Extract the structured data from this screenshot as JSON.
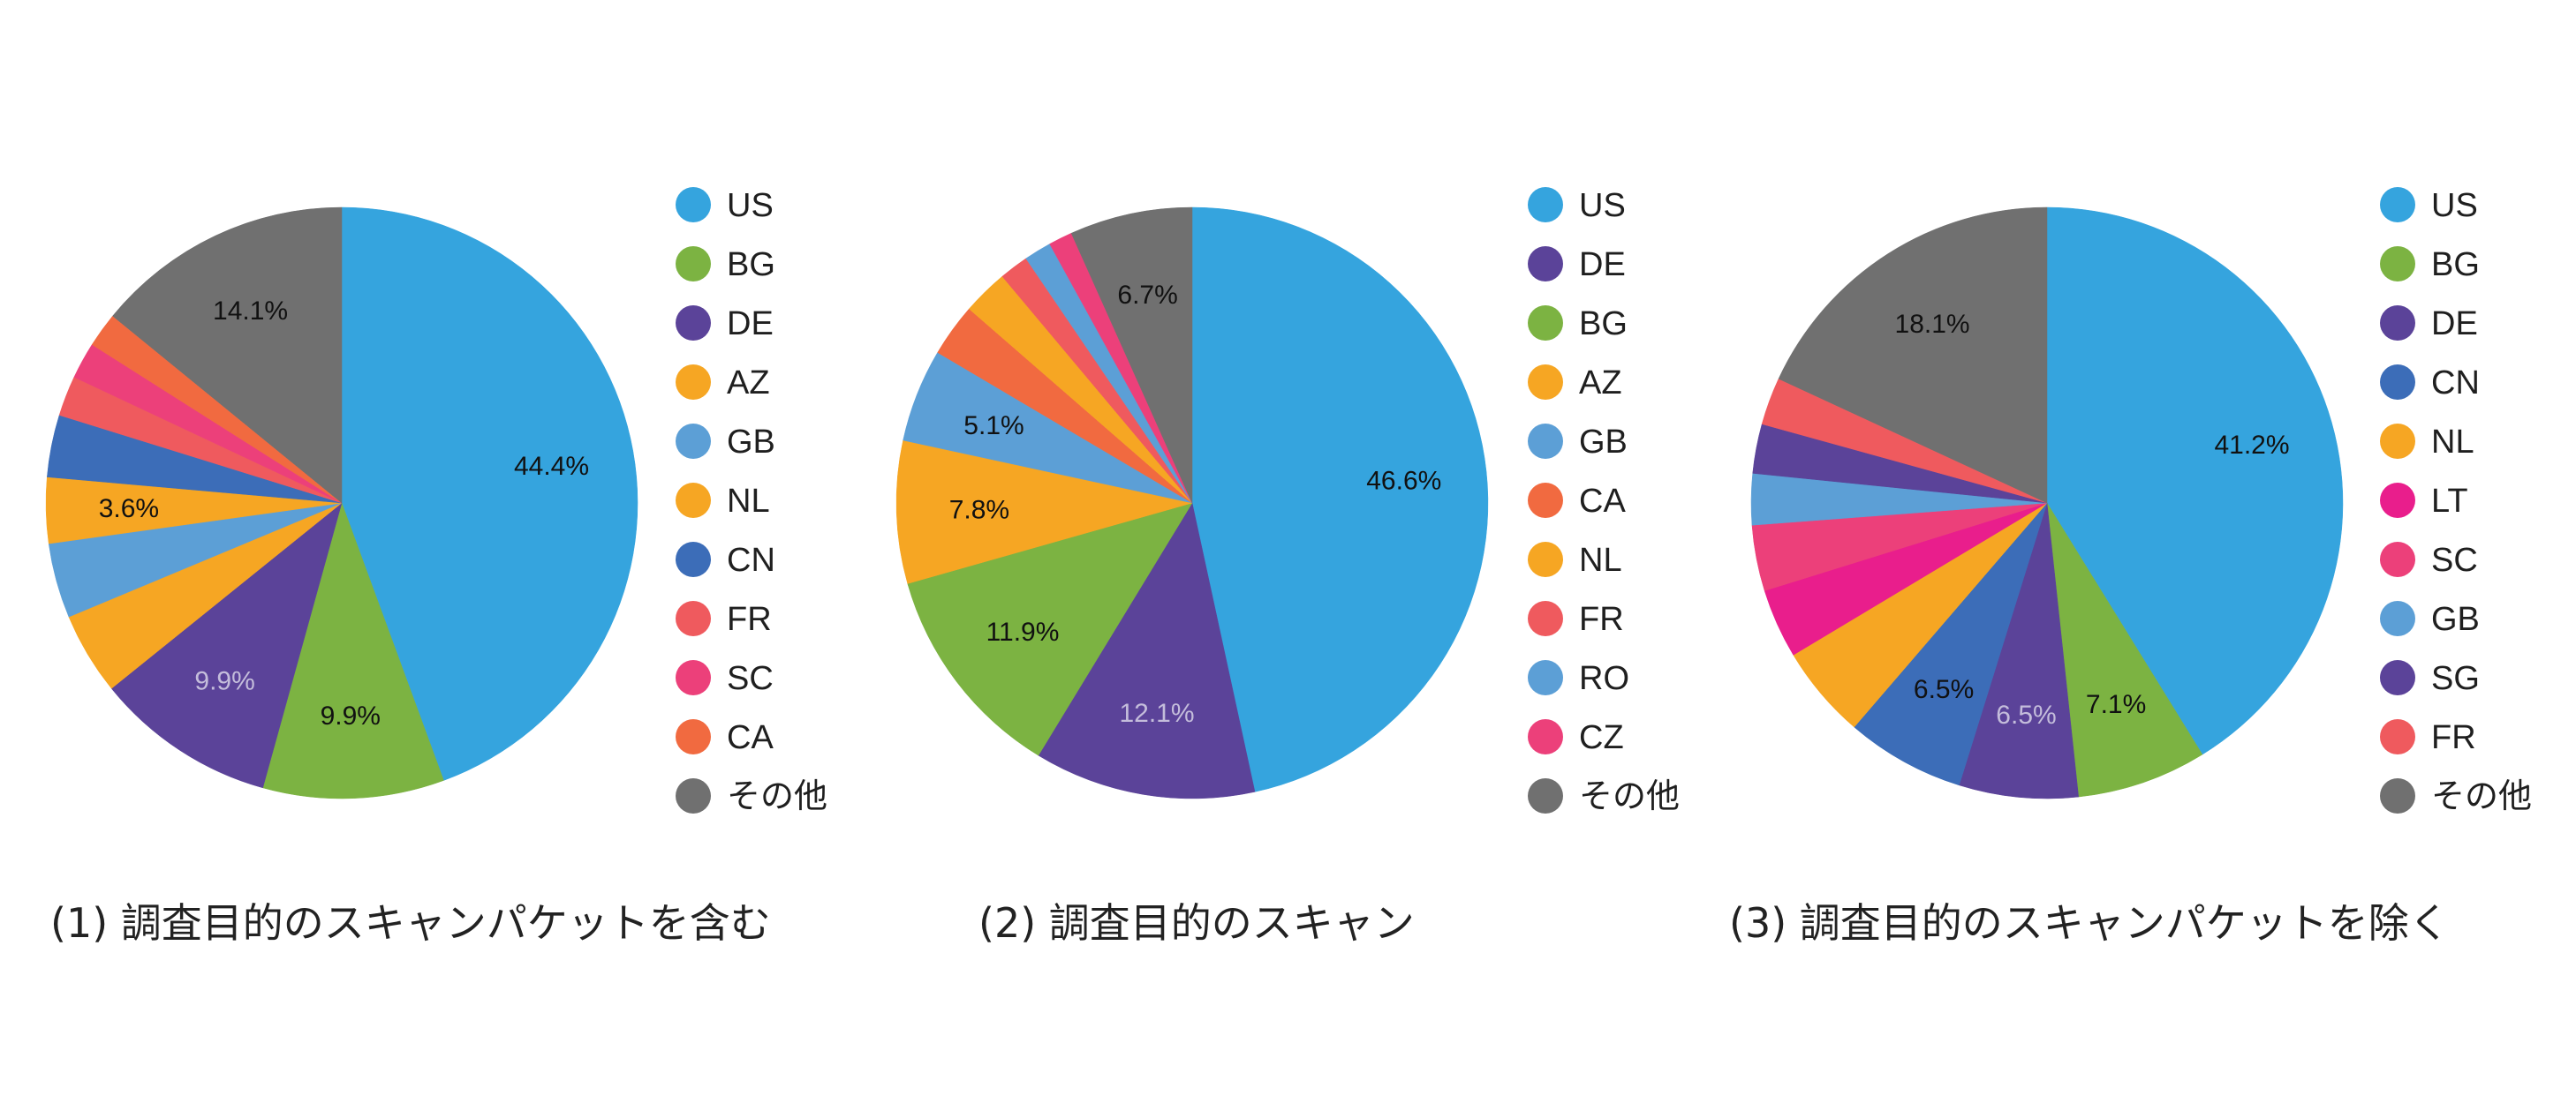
{
  "chart_data": [
    {
      "type": "pie",
      "caption": "(1) 調査目的のスキャンパケットを含む",
      "slices": [
        {
          "label": "US",
          "value": 44.4,
          "color": "#35a4de",
          "text": "44.4%",
          "text_color": "#111111"
        },
        {
          "label": "BG",
          "value": 9.9,
          "color": "#7cb342",
          "text": "9.9%",
          "text_color": "#111111"
        },
        {
          "label": "DE",
          "value": 9.9,
          "color": "#5b4399",
          "text": "9.9%",
          "text_color": "#c4bddb"
        },
        {
          "label": "AZ",
          "value": 4.5,
          "color": "#f6a623",
          "text": "",
          "text_color": "#111111"
        },
        {
          "label": "GB",
          "value": 4.1,
          "color": "#5c9fd6",
          "text": "",
          "text_color": "#111111"
        },
        {
          "label": "NL",
          "value": 3.6,
          "color": "#f6a623",
          "text": "3.6%",
          "text_color": "#111111"
        },
        {
          "label": "CN",
          "value": 3.4,
          "color": "#3c6db8",
          "text": "",
          "text_color": "#111111"
        },
        {
          "label": "FR",
          "value": 2.2,
          "color": "#ef5a5e",
          "text": "",
          "text_color": "#111111"
        },
        {
          "label": "SC",
          "value": 2.0,
          "color": "#ec407a",
          "text": "",
          "text_color": "#111111"
        },
        {
          "label": "CA",
          "value": 1.9,
          "color": "#f16a40",
          "text": "",
          "text_color": "#111111"
        },
        {
          "label": "その他",
          "value": 14.1,
          "color": "#707070",
          "text": "14.1%",
          "text_color": "#111111"
        }
      ]
    },
    {
      "type": "pie",
      "caption": "(2) 調査目的のスキャン",
      "slices": [
        {
          "label": "US",
          "value": 46.6,
          "color": "#35a4de",
          "text": "46.6%",
          "text_color": "#111111"
        },
        {
          "label": "DE",
          "value": 12.1,
          "color": "#5b4399",
          "text": "12.1%",
          "text_color": "#c4bddb"
        },
        {
          "label": "BG",
          "value": 11.9,
          "color": "#7cb342",
          "text": "11.9%",
          "text_color": "#111111"
        },
        {
          "label": "AZ",
          "value": 7.8,
          "color": "#f6a623",
          "text": "7.8%",
          "text_color": "#111111"
        },
        {
          "label": "GB",
          "value": 5.1,
          "color": "#5c9fd6",
          "text": "5.1%",
          "text_color": "#111111"
        },
        {
          "label": "CA",
          "value": 2.9,
          "color": "#f16a40",
          "text": "",
          "text_color": "#111111"
        },
        {
          "label": "NL",
          "value": 2.5,
          "color": "#f6a623",
          "text": "",
          "text_color": "#111111"
        },
        {
          "label": "FR",
          "value": 1.6,
          "color": "#ef5a5e",
          "text": "",
          "text_color": "#111111"
        },
        {
          "label": "RO",
          "value": 1.5,
          "color": "#5c9fd6",
          "text": "",
          "text_color": "#111111"
        },
        {
          "label": "CZ",
          "value": 1.3,
          "color": "#ec407a",
          "text": "",
          "text_color": "#111111"
        },
        {
          "label": "その他",
          "value": 6.7,
          "color": "#707070",
          "text": "6.7%",
          "text_color": "#111111"
        }
      ]
    },
    {
      "type": "pie",
      "caption": "(3) 調査目的のスキャンパケットを除く",
      "slices": [
        {
          "label": "US",
          "value": 41.2,
          "color": "#35a4de",
          "text": "41.2%",
          "text_color": "#111111"
        },
        {
          "label": "BG",
          "value": 7.1,
          "color": "#7cb342",
          "text": "7.1%",
          "text_color": "#111111"
        },
        {
          "label": "DE",
          "value": 6.5,
          "color": "#5b4399",
          "text": "6.5%",
          "text_color": "#c4bddb"
        },
        {
          "label": "CN",
          "value": 6.5,
          "color": "#3c6db8",
          "text": "6.5%",
          "text_color": "#111111"
        },
        {
          "label": "NL",
          "value": 5.1,
          "color": "#f6a623",
          "text": "",
          "text_color": "#111111"
        },
        {
          "label": "LT",
          "value": 3.8,
          "color": "#e91e8c",
          "text": "",
          "text_color": "#111111"
        },
        {
          "label": "SC",
          "value": 3.6,
          "color": "#ec407a",
          "text": "",
          "text_color": "#111111"
        },
        {
          "label": "GB",
          "value": 2.8,
          "color": "#5c9fd6",
          "text": "",
          "text_color": "#111111"
        },
        {
          "label": "SG",
          "value": 2.7,
          "color": "#5b4399",
          "text": "",
          "text_color": "#111111"
        },
        {
          "label": "FR",
          "value": 2.6,
          "color": "#ef5a5e",
          "text": "",
          "text_color": "#111111"
        },
        {
          "label": "その他",
          "value": 18.1,
          "color": "#707070",
          "text": "18.1%",
          "text_color": "#111111"
        }
      ]
    }
  ]
}
